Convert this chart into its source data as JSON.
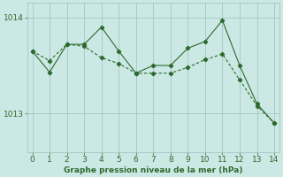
{
  "series1_x": [
    0,
    1,
    2,
    3,
    4,
    5,
    6,
    7,
    8,
    9,
    10,
    11,
    12,
    13,
    14
  ],
  "series1_y": [
    1013.65,
    1013.55,
    1013.72,
    1013.7,
    1013.58,
    1013.52,
    1013.42,
    1013.42,
    1013.42,
    1013.48,
    1013.56,
    1013.62,
    1013.35,
    1013.08,
    1012.9
  ],
  "series2_x": [
    0,
    1,
    2,
    3,
    4,
    5,
    6,
    7,
    8,
    9,
    10,
    11,
    12,
    13,
    14
  ],
  "series2_y": [
    1013.65,
    1013.43,
    1013.72,
    1013.72,
    1013.9,
    1013.65,
    1013.42,
    1013.5,
    1013.5,
    1013.68,
    1013.75,
    1013.97,
    1013.5,
    1013.1,
    1012.9
  ],
  "line_color": "#2d6a2d",
  "bg_color": "#cce8e4",
  "grid_color": "#9dbfbb",
  "xlabel": "Graphe pression niveau de la mer (hPa)",
  "yticks": [
    1013,
    1014
  ],
  "xticks": [
    0,
    1,
    2,
    3,
    4,
    5,
    6,
    7,
    8,
    9,
    10,
    11,
    12,
    13,
    14
  ],
  "ylim": [
    1012.6,
    1014.15
  ],
  "xlim": [
    -0.3,
    14.3
  ],
  "xlabel_color": "#2d6a2d",
  "tick_color": "#2d6a2d",
  "tick_fontsize": 6.5,
  "xlabel_fontsize": 6.5
}
